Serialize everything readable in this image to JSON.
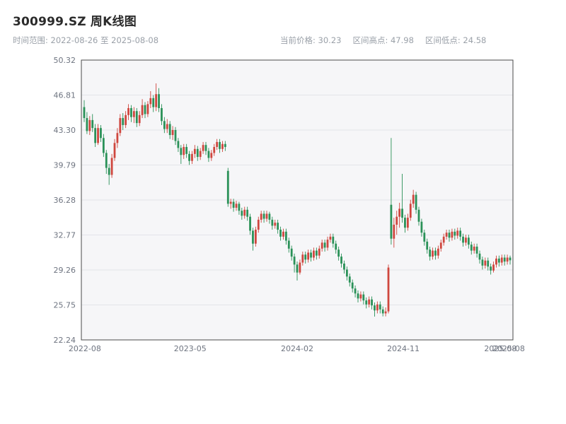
{
  "header": {
    "title": "300999.SZ 周K线图",
    "date_range_text": "时间范围: 2022-08-26 至 2025-08-08",
    "info": [
      "当前价格: 30.23",
      "区间高点: 47.98",
      "区间低点: 24.58"
    ]
  },
  "chart_data": {
    "type": "candlestick",
    "title": "300999.SZ 周K线图",
    "symbol": "300999.SZ",
    "interval": "周K",
    "date_range": [
      "2022-08-26",
      "2025-08-08"
    ],
    "current_price": 30.23,
    "range_high": 47.98,
    "range_low": 24.58,
    "grid": true,
    "ylim": [
      22.24,
      50.32
    ],
    "yticks": [
      50.32,
      46.81,
      43.3,
      39.79,
      36.28,
      32.77,
      29.26,
      25.75,
      22.24
    ],
    "xticks": [
      {
        "label": "2022-08",
        "pos": 0.008
      },
      {
        "label": "2023-05",
        "pos": 0.252
      },
      {
        "label": "2024-02",
        "pos": 0.5
      },
      {
        "label": "2024-11",
        "pos": 0.746
      },
      {
        "label": "2025-08",
        "pos": 0.971
      },
      {
        "label": "2025-08",
        "pos": 0.99
      }
    ],
    "colors": {
      "up": "#cf463e",
      "down": "#2a9158",
      "plot_bg": "#f6f6f8",
      "grid": "#e3e4e9",
      "frame": "#4a4a4a",
      "axis_text": "#6e7480"
    },
    "candles": [
      [
        45.6,
        46.3,
        44.1,
        44.5
      ],
      [
        44.5,
        45.1,
        42.9,
        43.2
      ],
      [
        43.2,
        44.7,
        42.8,
        44.3
      ],
      [
        44.3,
        44.9,
        43.1,
        43.5
      ],
      [
        43.5,
        43.9,
        41.6,
        42.0
      ],
      [
        42.0,
        43.9,
        41.8,
        43.5
      ],
      [
        43.5,
        43.8,
        42.1,
        42.5
      ],
      [
        42.5,
        42.9,
        40.6,
        41.0
      ],
      [
        41.0,
        41.3,
        38.9,
        39.5
      ],
      [
        39.5,
        39.9,
        37.8,
        38.8
      ],
      [
        38.8,
        40.9,
        38.5,
        40.5
      ],
      [
        40.5,
        42.4,
        40.2,
        42.0
      ],
      [
        42.0,
        43.5,
        41.5,
        43.0
      ],
      [
        43.0,
        44.9,
        42.7,
        44.5
      ],
      [
        44.5,
        45.0,
        43.3,
        43.8
      ],
      [
        43.8,
        45.2,
        43.5,
        44.8
      ],
      [
        44.8,
        45.9,
        44.3,
        45.5
      ],
      [
        45.5,
        45.8,
        44.1,
        44.6
      ],
      [
        44.6,
        45.6,
        44.0,
        45.2
      ],
      [
        45.2,
        45.5,
        43.6,
        44.0
      ],
      [
        44.0,
        45.2,
        43.7,
        44.8
      ],
      [
        44.8,
        46.4,
        44.5,
        45.8
      ],
      [
        45.8,
        46.1,
        44.5,
        44.9
      ],
      [
        44.9,
        46.2,
        44.6,
        45.9
      ],
      [
        45.9,
        47.2,
        45.5,
        46.5
      ],
      [
        46.5,
        46.8,
        45.1,
        45.6
      ],
      [
        45.6,
        47.98,
        45.2,
        46.9
      ],
      [
        46.9,
        47.5,
        45.1,
        45.5
      ],
      [
        45.5,
        45.9,
        43.8,
        44.2
      ],
      [
        44.2,
        44.6,
        43.0,
        43.4
      ],
      [
        43.4,
        44.4,
        43.0,
        43.9
      ],
      [
        43.9,
        44.2,
        42.4,
        42.8
      ],
      [
        42.8,
        43.7,
        42.3,
        43.3
      ],
      [
        43.3,
        43.6,
        41.8,
        42.2
      ],
      [
        42.2,
        42.5,
        41.1,
        41.5
      ],
      [
        41.5,
        41.8,
        39.9,
        40.8
      ],
      [
        40.8,
        41.9,
        40.4,
        41.6
      ],
      [
        41.6,
        41.9,
        40.5,
        40.9
      ],
      [
        40.9,
        41.2,
        39.8,
        40.2
      ],
      [
        40.2,
        41.2,
        39.9,
        40.9
      ],
      [
        40.9,
        41.8,
        40.5,
        41.4
      ],
      [
        41.4,
        41.7,
        40.2,
        40.6
      ],
      [
        40.6,
        41.5,
        40.3,
        41.2
      ],
      [
        41.2,
        42.1,
        40.9,
        41.8
      ],
      [
        41.8,
        42.1,
        40.8,
        41.2
      ],
      [
        41.2,
        41.5,
        40.1,
        40.5
      ],
      [
        40.5,
        41.3,
        40.2,
        41.0
      ],
      [
        41.0,
        41.9,
        40.7,
        41.6
      ],
      [
        41.6,
        42.4,
        41.3,
        42.1
      ],
      [
        42.1,
        42.4,
        41.0,
        41.4
      ],
      [
        41.4,
        42.2,
        41.1,
        41.9
      ],
      [
        41.9,
        42.2,
        41.2,
        41.6
      ],
      [
        39.2,
        39.5,
        35.6,
        35.9
      ],
      [
        35.9,
        36.4,
        35.4,
        36.1
      ],
      [
        36.1,
        36.4,
        35.1,
        35.5
      ],
      [
        35.5,
        36.2,
        35.2,
        35.9
      ],
      [
        35.9,
        36.1,
        34.8,
        35.2
      ],
      [
        35.2,
        35.5,
        34.3,
        34.7
      ],
      [
        34.7,
        35.6,
        34.4,
        35.3
      ],
      [
        35.3,
        35.6,
        34.2,
        34.6
      ],
      [
        34.6,
        34.9,
        32.8,
        33.2
      ],
      [
        33.2,
        33.5,
        31.2,
        31.9
      ],
      [
        31.9,
        33.6,
        31.6,
        33.3
      ],
      [
        33.3,
        34.6,
        33.0,
        34.3
      ],
      [
        34.3,
        35.2,
        34.0,
        34.9
      ],
      [
        34.9,
        35.2,
        34.0,
        34.4
      ],
      [
        34.4,
        35.2,
        34.1,
        34.9
      ],
      [
        34.9,
        35.1,
        33.9,
        34.3
      ],
      [
        34.3,
        34.6,
        33.3,
        33.7
      ],
      [
        33.7,
        34.3,
        33.4,
        34.0
      ],
      [
        34.0,
        34.3,
        32.9,
        33.3
      ],
      [
        33.3,
        33.6,
        32.2,
        32.6
      ],
      [
        32.6,
        33.4,
        32.3,
        33.1
      ],
      [
        33.1,
        33.4,
        31.8,
        32.2
      ],
      [
        32.2,
        32.5,
        31.0,
        31.4
      ],
      [
        31.4,
        31.7,
        30.2,
        30.6
      ],
      [
        30.6,
        30.9,
        29.0,
        29.8
      ],
      [
        29.8,
        30.1,
        28.2,
        29.0
      ],
      [
        29.0,
        30.3,
        28.8,
        30.0
      ],
      [
        30.0,
        31.1,
        29.7,
        30.8
      ],
      [
        30.8,
        31.1,
        29.9,
        30.3
      ],
      [
        30.3,
        31.3,
        30.0,
        31.0
      ],
      [
        31.0,
        31.3,
        30.1,
        30.5
      ],
      [
        30.5,
        31.5,
        30.2,
        31.2
      ],
      [
        31.2,
        31.5,
        30.3,
        30.7
      ],
      [
        30.7,
        31.7,
        30.4,
        31.4
      ],
      [
        31.4,
        32.3,
        31.1,
        32.0
      ],
      [
        32.0,
        32.3,
        31.1,
        31.5
      ],
      [
        31.5,
        32.6,
        31.2,
        32.3
      ],
      [
        32.3,
        32.9,
        32.0,
        32.6
      ],
      [
        32.6,
        32.9,
        31.5,
        31.9
      ],
      [
        31.9,
        32.2,
        30.9,
        31.3
      ],
      [
        31.3,
        31.6,
        30.2,
        30.6
      ],
      [
        30.6,
        30.9,
        29.5,
        29.9
      ],
      [
        29.9,
        30.2,
        28.9,
        29.3
      ],
      [
        29.3,
        29.6,
        28.2,
        28.6
      ],
      [
        28.6,
        28.9,
        27.6,
        28.0
      ],
      [
        28.0,
        28.3,
        27.0,
        27.4
      ],
      [
        27.4,
        27.7,
        26.5,
        26.9
      ],
      [
        26.9,
        27.2,
        26.0,
        26.4
      ],
      [
        26.4,
        27.1,
        26.1,
        26.8
      ],
      [
        26.8,
        27.1,
        25.8,
        26.2
      ],
      [
        26.2,
        26.5,
        25.4,
        25.8
      ],
      [
        25.8,
        26.6,
        25.5,
        26.3
      ],
      [
        26.3,
        26.6,
        25.3,
        25.7
      ],
      [
        25.7,
        26.0,
        24.58,
        25.2
      ],
      [
        25.2,
        26.1,
        24.9,
        25.8
      ],
      [
        25.8,
        26.1,
        24.9,
        25.3
      ],
      [
        25.3,
        25.6,
        24.6,
        24.9
      ],
      [
        24.9,
        25.5,
        24.6,
        25.1
      ],
      [
        25.1,
        29.8,
        24.9,
        29.5
      ],
      [
        35.8,
        42.5,
        31.8,
        32.4
      ],
      [
        32.4,
        34.5,
        31.5,
        33.8
      ],
      [
        33.8,
        35.2,
        32.8,
        34.6
      ],
      [
        34.6,
        36.0,
        33.5,
        35.4
      ],
      [
        35.4,
        38.9,
        34.0,
        34.5
      ],
      [
        34.5,
        34.8,
        33.0,
        33.5
      ],
      [
        33.5,
        34.9,
        33.2,
        34.5
      ],
      [
        34.5,
        36.3,
        34.2,
        35.9
      ],
      [
        35.9,
        37.3,
        35.5,
        36.8
      ],
      [
        36.8,
        37.1,
        34.9,
        35.3
      ],
      [
        35.3,
        35.6,
        33.7,
        34.1
      ],
      [
        34.1,
        34.4,
        32.6,
        33.0
      ],
      [
        33.0,
        33.3,
        31.7,
        32.1
      ],
      [
        32.1,
        32.4,
        30.9,
        31.3
      ],
      [
        31.3,
        31.6,
        30.2,
        30.6
      ],
      [
        30.6,
        31.5,
        30.3,
        31.2
      ],
      [
        31.2,
        31.5,
        30.3,
        30.7
      ],
      [
        30.7,
        31.7,
        30.4,
        31.4
      ],
      [
        31.4,
        32.3,
        31.1,
        32.0
      ],
      [
        32.0,
        32.9,
        31.7,
        32.6
      ],
      [
        32.6,
        33.3,
        32.3,
        33.0
      ],
      [
        33.0,
        33.3,
        32.1,
        32.5
      ],
      [
        32.5,
        33.4,
        32.2,
        33.1
      ],
      [
        33.1,
        33.4,
        32.3,
        32.7
      ],
      [
        32.7,
        33.5,
        32.4,
        33.2
      ],
      [
        33.2,
        33.5,
        32.2,
        32.6
      ],
      [
        32.6,
        32.9,
        31.6,
        32.0
      ],
      [
        32.0,
        32.8,
        31.7,
        32.5
      ],
      [
        32.5,
        32.8,
        31.4,
        31.8
      ],
      [
        31.8,
        32.1,
        30.8,
        31.2
      ],
      [
        31.2,
        31.9,
        30.9,
        31.6
      ],
      [
        31.6,
        31.9,
        30.5,
        30.9
      ],
      [
        30.9,
        31.2,
        29.9,
        30.3
      ],
      [
        30.3,
        30.6,
        29.3,
        29.7
      ],
      [
        29.7,
        30.5,
        29.4,
        30.2
      ],
      [
        30.2,
        30.5,
        29.2,
        29.6
      ],
      [
        29.6,
        29.9,
        28.8,
        29.2
      ],
      [
        29.2,
        30.1,
        29.0,
        29.8
      ],
      [
        29.8,
        30.7,
        29.5,
        30.4
      ],
      [
        30.4,
        30.7,
        29.6,
        30.0
      ],
      [
        30.0,
        30.8,
        29.7,
        30.5
      ],
      [
        30.5,
        30.8,
        29.7,
        30.1
      ],
      [
        30.1,
        30.8,
        29.8,
        30.5
      ],
      [
        30.5,
        30.7,
        29.8,
        30.23
      ]
    ]
  }
}
